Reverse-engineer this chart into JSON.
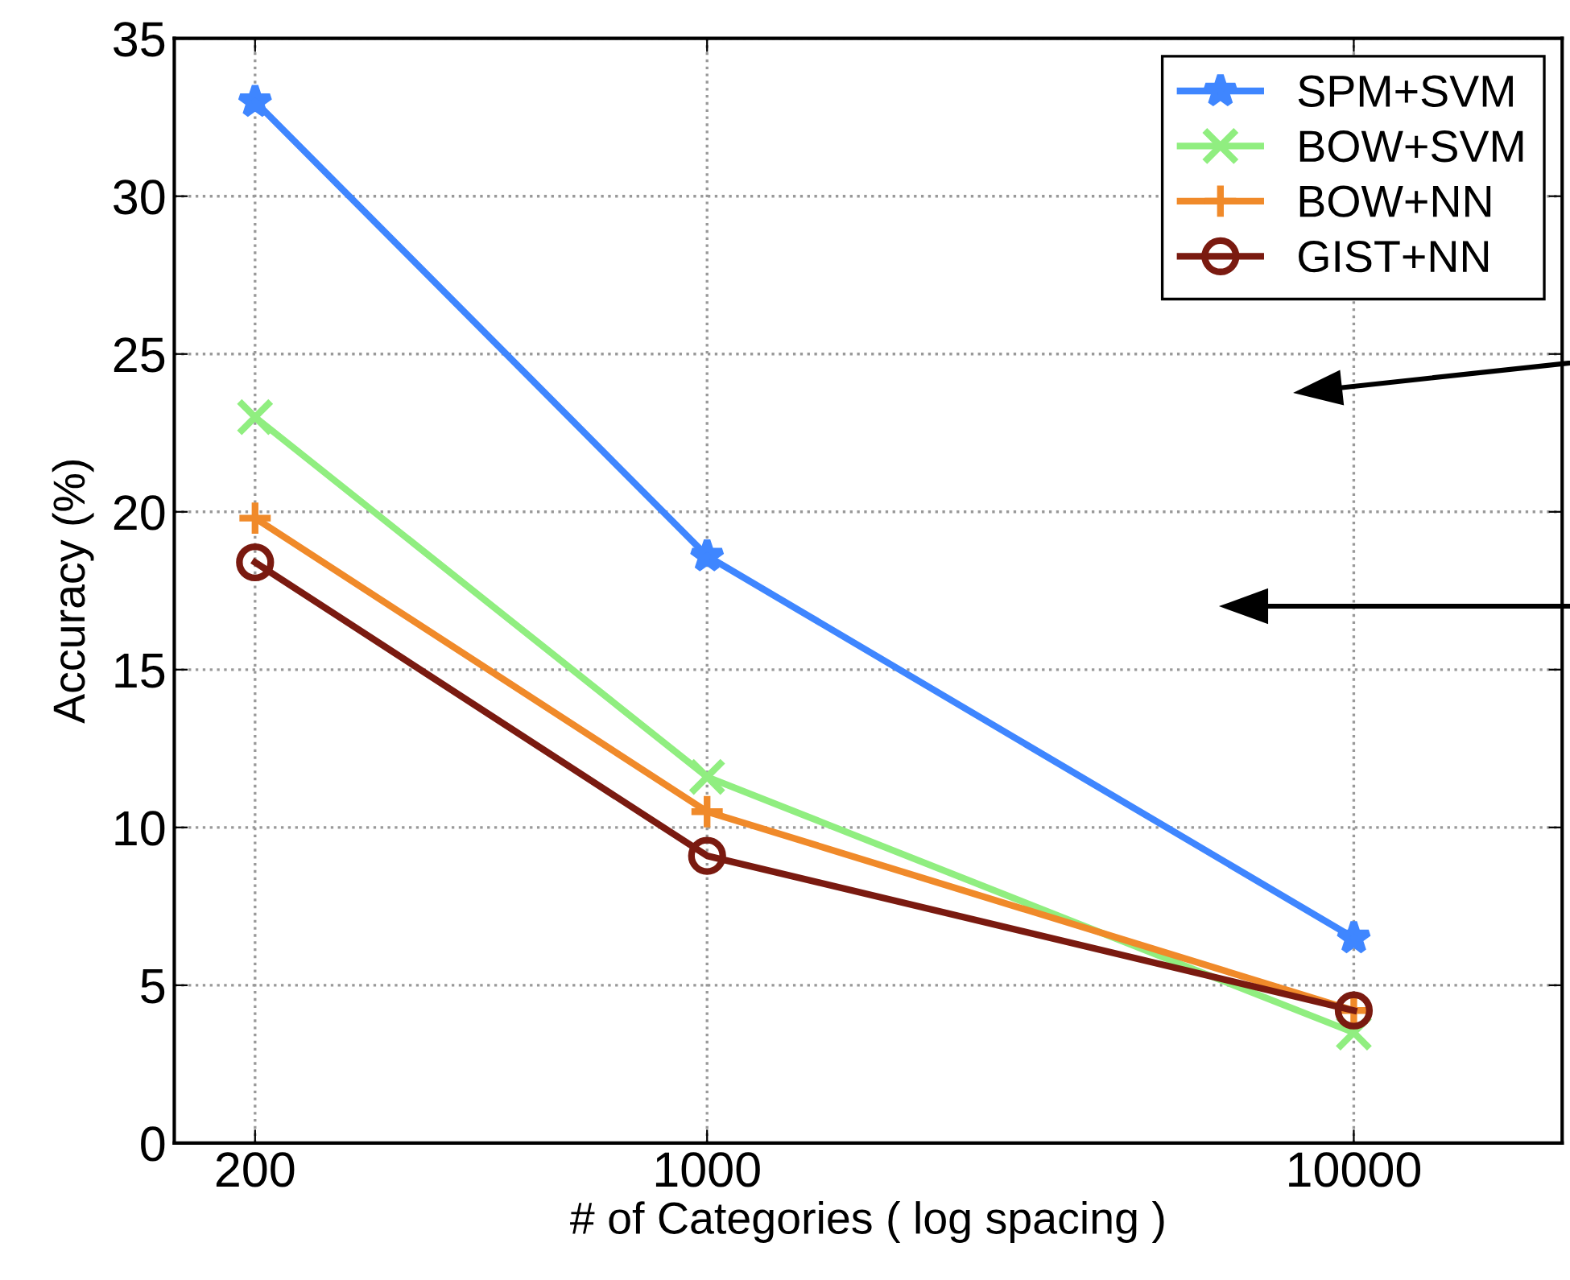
{
  "chart_data": {
    "type": "line",
    "xlabel": "# of Categories ( log spacing )",
    "ylabel": "Accuracy (%)",
    "x": [
      200,
      1000,
      10000
    ],
    "log": "x",
    "xlim": [
      150,
      21000
    ],
    "xticks": [
      200,
      1000,
      10000
    ],
    "ylim": [
      0,
      35
    ],
    "yticks": [
      0,
      5,
      10,
      15,
      20,
      25,
      30,
      35
    ],
    "grid": true,
    "legend": "top right",
    "line_style": "solid",
    "series": [
      {
        "name": "SPM+SVM",
        "color": "#3f86ff",
        "marker": "star",
        "values": [
          33,
          18.6,
          6.5
        ]
      },
      {
        "name": "BOW+SVM",
        "color": "#90ee80",
        "marker": "cross",
        "values": [
          23,
          11.6,
          3.5
        ]
      },
      {
        "name": "BOW+NN",
        "color": "#f08a2a",
        "marker": "plus",
        "values": [
          19.8,
          10.5,
          4.2
        ]
      },
      {
        "name": "GIST+NN",
        "color": "#7a1a10",
        "marker": "circle",
        "values": [
          18.4,
          9.1,
          4.2
        ]
      }
    ]
  }
}
